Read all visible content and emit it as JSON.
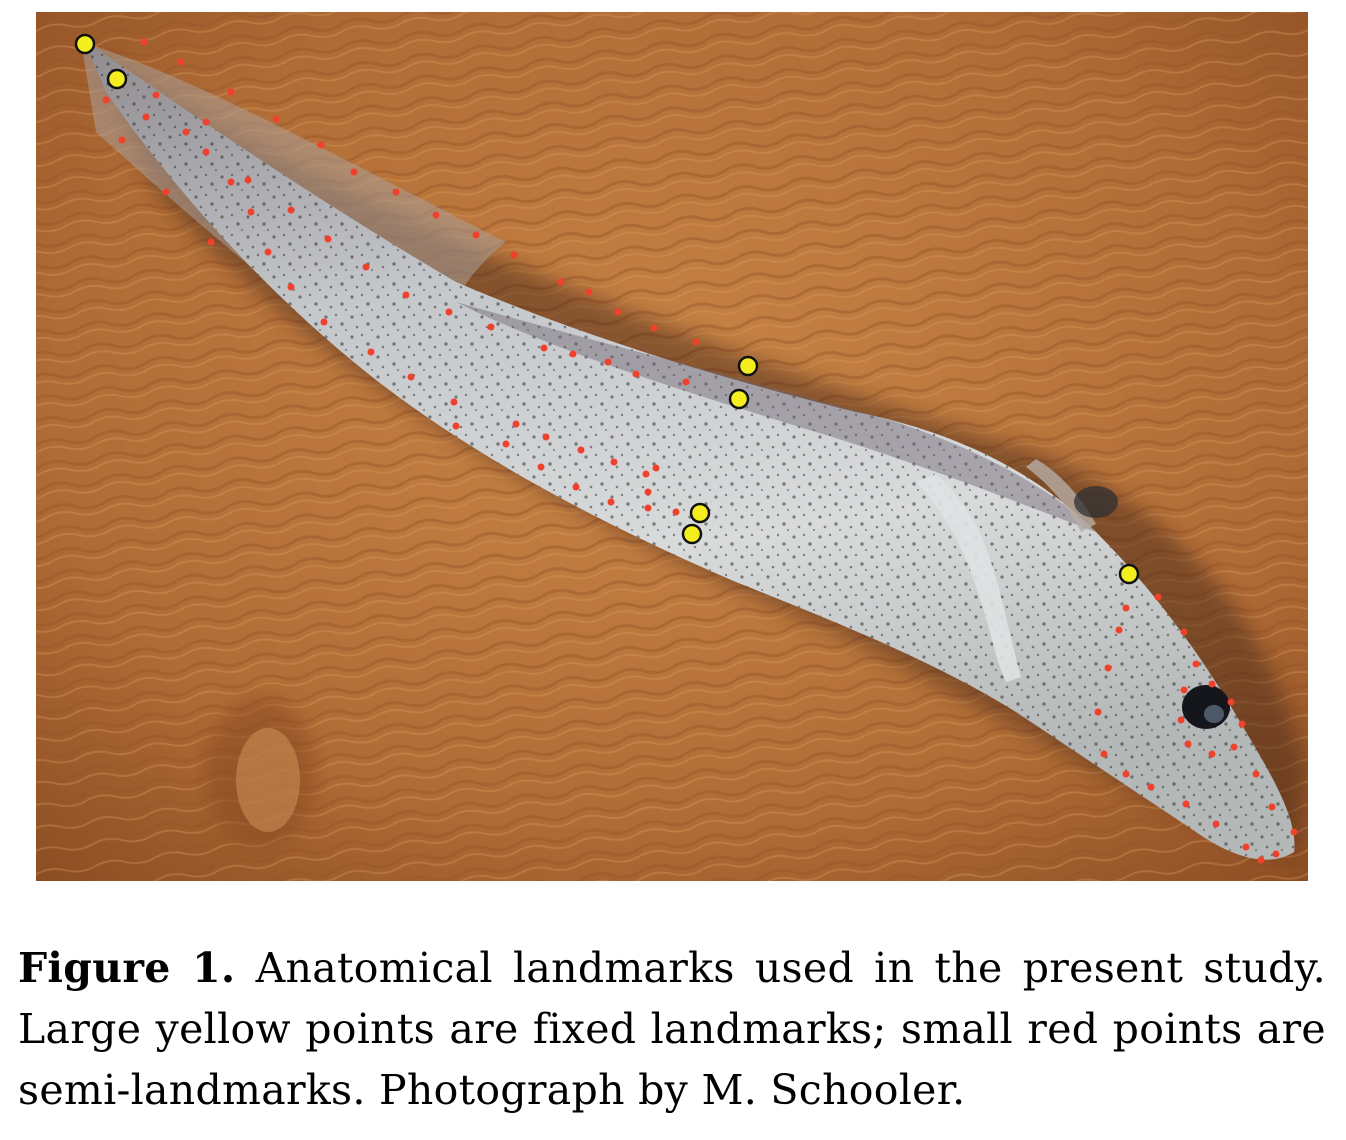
{
  "figure": {
    "label": "Figure 1.",
    "caption": " Anatomical landmarks used in the present study. Large yellow points are fixed landmarks; small red points are semi-landmarks. Photograph by M. Schooler."
  },
  "photo": {
    "subject": "larval-fish",
    "colors": {
      "background_tan": "#b8723c",
      "background_dark": "#7a4320",
      "fish_body": "#c9cdd0",
      "fish_shadow": "#6e6a6a",
      "fixed_landmark": "#f5ee1e",
      "semi_landmark": "#f0412c"
    }
  }
}
